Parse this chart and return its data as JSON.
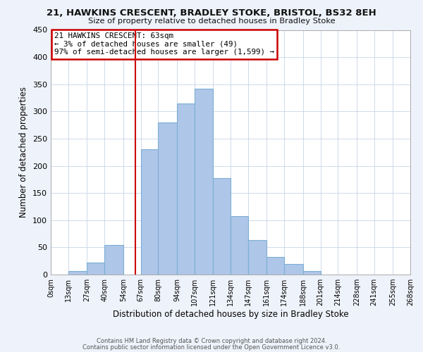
{
  "title_line1": "21, HAWKINS CRESCENT, BRADLEY STOKE, BRISTOL, BS32 8EH",
  "title_line2": "Size of property relative to detached houses in Bradley Stoke",
  "xlabel": "Distribution of detached houses by size in Bradley Stoke",
  "ylabel": "Number of detached properties",
  "footer_line1": "Contains HM Land Registry data © Crown copyright and database right 2024.",
  "footer_line2": "Contains public sector information licensed under the Open Government Licence v3.0.",
  "annotation_line1": "21 HAWKINS CRESCENT: 63sqm",
  "annotation_line2": "← 3% of detached houses are smaller (49)",
  "annotation_line3": "97% of semi-detached houses are larger (1,599) →",
  "bar_left_edges": [
    0,
    13,
    27,
    40,
    54,
    67,
    80,
    94,
    107,
    121,
    134,
    147,
    161,
    174,
    188,
    201,
    214,
    228,
    241,
    255
  ],
  "bar_heights": [
    0,
    6,
    22,
    55,
    0,
    230,
    280,
    315,
    342,
    177,
    108,
    63,
    33,
    19,
    7,
    0,
    0,
    0,
    0,
    0
  ],
  "bar_widths": [
    13,
    14,
    13,
    14,
    13,
    13,
    14,
    13,
    14,
    13,
    13,
    14,
    13,
    14,
    13,
    13,
    14,
    13,
    14,
    13
  ],
  "bar_color": "#aec6e8",
  "bar_edgecolor": "#7bafd4",
  "vline_x": 63,
  "vline_color": "#cc0000",
  "xlim": [
    0,
    268
  ],
  "ylim": [
    0,
    450
  ],
  "xtick_positions": [
    0,
    13,
    27,
    40,
    54,
    67,
    80,
    94,
    107,
    121,
    134,
    147,
    161,
    174,
    188,
    201,
    214,
    228,
    241,
    255,
    268
  ],
  "xtick_labels": [
    "0sqm",
    "13sqm",
    "27sqm",
    "40sqm",
    "54sqm",
    "67sqm",
    "80sqm",
    "94sqm",
    "107sqm",
    "121sqm",
    "134sqm",
    "147sqm",
    "161sqm",
    "174sqm",
    "188sqm",
    "201sqm",
    "214sqm",
    "228sqm",
    "241sqm",
    "255sqm",
    "268sqm"
  ],
  "ytick_positions": [
    0,
    50,
    100,
    150,
    200,
    250,
    300,
    350,
    400,
    450
  ],
  "ytick_labels": [
    "0",
    "50",
    "100",
    "150",
    "200",
    "250",
    "300",
    "350",
    "400",
    "450"
  ],
  "bg_color": "#eef2fa",
  "plot_bg_color": "#ffffff",
  "grid_color": "#c8d4e8"
}
